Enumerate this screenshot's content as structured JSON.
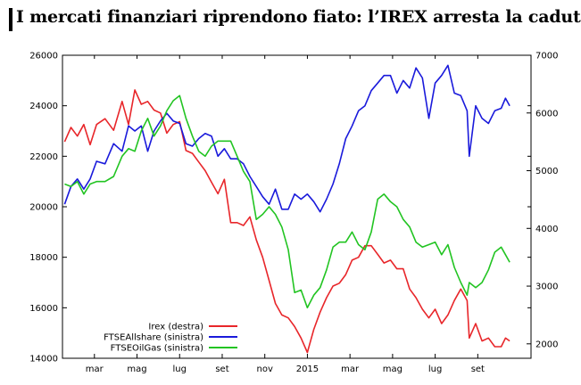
{
  "title": "I mercati finanziari riprendono fiato: l’IREX arresta la caduta",
  "chart_data": {
    "type": "line",
    "left_axis": {
      "min": 14000,
      "max": 26000,
      "ticks": [
        14000,
        16000,
        18000,
        20000,
        22000,
        24000,
        26000
      ]
    },
    "right_axis": {
      "min": 1750,
      "max": 7000,
      "ticks": [
        2000,
        3000,
        4000,
        5000,
        6000,
        7000
      ]
    },
    "x_range": [
      0,
      22
    ],
    "x_ticks": [
      {
        "label": "mar",
        "x": 1.5
      },
      {
        "label": "mag",
        "x": 3.5
      },
      {
        "label": "lug",
        "x": 5.5
      },
      {
        "label": "set",
        "x": 7.5
      },
      {
        "label": "nov",
        "x": 9.5
      },
      {
        "label": "2015",
        "x": 11.5
      },
      {
        "label": "mar",
        "x": 13.5
      },
      {
        "label": "mag",
        "x": 15.5
      },
      {
        "label": "lug",
        "x": 17.5
      },
      {
        "label": "set",
        "x": 19.5
      }
    ],
    "legend_position": "bottom-left",
    "grid": false,
    "series": [
      {
        "name": "Irex (destra)",
        "axis": "right",
        "color": "#e8262a",
        "points": [
          [
            0.1,
            5500
          ],
          [
            0.4,
            5750
          ],
          [
            0.7,
            5600
          ],
          [
            1.0,
            5800
          ],
          [
            1.3,
            5450
          ],
          [
            1.6,
            5800
          ],
          [
            2.0,
            5900
          ],
          [
            2.4,
            5700
          ],
          [
            2.8,
            6200
          ],
          [
            3.1,
            5800
          ],
          [
            3.4,
            6400
          ],
          [
            3.7,
            6150
          ],
          [
            4.0,
            6200
          ],
          [
            4.3,
            6050
          ],
          [
            4.6,
            6000
          ],
          [
            4.9,
            5650
          ],
          [
            5.2,
            5800
          ],
          [
            5.5,
            5850
          ],
          [
            5.8,
            5350
          ],
          [
            6.1,
            5300
          ],
          [
            6.4,
            5150
          ],
          [
            6.7,
            5000
          ],
          [
            7.0,
            4800
          ],
          [
            7.3,
            4600
          ],
          [
            7.6,
            4850
          ],
          [
            7.9,
            4100
          ],
          [
            8.2,
            4100
          ],
          [
            8.5,
            4050
          ],
          [
            8.8,
            4200
          ],
          [
            9.1,
            3800
          ],
          [
            9.4,
            3500
          ],
          [
            9.7,
            3100
          ],
          [
            10.0,
            2700
          ],
          [
            10.3,
            2500
          ],
          [
            10.6,
            2450
          ],
          [
            10.9,
            2300
          ],
          [
            11.2,
            2100
          ],
          [
            11.5,
            1850
          ],
          [
            11.8,
            2250
          ],
          [
            12.1,
            2550
          ],
          [
            12.4,
            2800
          ],
          [
            12.7,
            3000
          ],
          [
            13.0,
            3050
          ],
          [
            13.3,
            3200
          ],
          [
            13.6,
            3450
          ],
          [
            13.9,
            3500
          ],
          [
            14.2,
            3700
          ],
          [
            14.5,
            3700
          ],
          [
            14.8,
            3550
          ],
          [
            15.1,
            3400
          ],
          [
            15.4,
            3450
          ],
          [
            15.7,
            3300
          ],
          [
            16.0,
            3300
          ],
          [
            16.3,
            2950
          ],
          [
            16.6,
            2800
          ],
          [
            16.9,
            2600
          ],
          [
            17.2,
            2450
          ],
          [
            17.5,
            2600
          ],
          [
            17.8,
            2350
          ],
          [
            18.1,
            2500
          ],
          [
            18.4,
            2750
          ],
          [
            18.7,
            2950
          ],
          [
            19.0,
            2750
          ],
          [
            19.1,
            2100
          ],
          [
            19.4,
            2350
          ],
          [
            19.7,
            2050
          ],
          [
            20.0,
            2100
          ],
          [
            20.3,
            1950
          ],
          [
            20.6,
            1950
          ],
          [
            20.8,
            2100
          ],
          [
            21.0,
            2050
          ]
        ]
      },
      {
        "name": "FTSEAllshare (sinistra)",
        "axis": "left",
        "color": "#1a1adb",
        "points": [
          [
            0.1,
            20100
          ],
          [
            0.4,
            20800
          ],
          [
            0.7,
            21100
          ],
          [
            1.0,
            20700
          ],
          [
            1.3,
            21100
          ],
          [
            1.6,
            21800
          ],
          [
            2.0,
            21700
          ],
          [
            2.4,
            22500
          ],
          [
            2.8,
            22200
          ],
          [
            3.1,
            23200
          ],
          [
            3.4,
            23000
          ],
          [
            3.7,
            23200
          ],
          [
            4.0,
            22200
          ],
          [
            4.3,
            23000
          ],
          [
            4.6,
            23400
          ],
          [
            4.9,
            23700
          ],
          [
            5.2,
            23400
          ],
          [
            5.5,
            23300
          ],
          [
            5.8,
            22500
          ],
          [
            6.1,
            22400
          ],
          [
            6.4,
            22700
          ],
          [
            6.7,
            22900
          ],
          [
            7.0,
            22800
          ],
          [
            7.3,
            22000
          ],
          [
            7.6,
            22300
          ],
          [
            7.9,
            21900
          ],
          [
            8.2,
            21900
          ],
          [
            8.5,
            21700
          ],
          [
            8.8,
            21200
          ],
          [
            9.1,
            20800
          ],
          [
            9.4,
            20400
          ],
          [
            9.7,
            20100
          ],
          [
            10.0,
            20700
          ],
          [
            10.3,
            19900
          ],
          [
            10.6,
            19900
          ],
          [
            10.9,
            20500
          ],
          [
            11.2,
            20300
          ],
          [
            11.5,
            20500
          ],
          [
            11.8,
            20200
          ],
          [
            12.1,
            19800
          ],
          [
            12.4,
            20300
          ],
          [
            12.7,
            20900
          ],
          [
            13.0,
            21700
          ],
          [
            13.3,
            22700
          ],
          [
            13.6,
            23200
          ],
          [
            13.9,
            23800
          ],
          [
            14.2,
            24000
          ],
          [
            14.5,
            24600
          ],
          [
            14.8,
            24900
          ],
          [
            15.1,
            25200
          ],
          [
            15.4,
            25200
          ],
          [
            15.7,
            24500
          ],
          [
            16.0,
            25000
          ],
          [
            16.3,
            24700
          ],
          [
            16.6,
            25500
          ],
          [
            16.9,
            25100
          ],
          [
            17.2,
            23500
          ],
          [
            17.5,
            24900
          ],
          [
            17.8,
            25200
          ],
          [
            18.1,
            25600
          ],
          [
            18.4,
            24500
          ],
          [
            18.7,
            24400
          ],
          [
            19.0,
            23800
          ],
          [
            19.1,
            22000
          ],
          [
            19.4,
            24000
          ],
          [
            19.7,
            23500
          ],
          [
            20.0,
            23300
          ],
          [
            20.3,
            23800
          ],
          [
            20.6,
            23900
          ],
          [
            20.8,
            24300
          ],
          [
            21.0,
            24000
          ]
        ]
      },
      {
        "name": "FTSEOilGas (sinistra)",
        "axis": "left",
        "color": "#22c422",
        "points": [
          [
            0.1,
            20900
          ],
          [
            0.4,
            20800
          ],
          [
            0.7,
            21000
          ],
          [
            1.0,
            20500
          ],
          [
            1.3,
            20900
          ],
          [
            1.6,
            21000
          ],
          [
            2.0,
            21000
          ],
          [
            2.4,
            21200
          ],
          [
            2.8,
            22000
          ],
          [
            3.1,
            22300
          ],
          [
            3.4,
            22200
          ],
          [
            3.7,
            23000
          ],
          [
            4.0,
            23500
          ],
          [
            4.3,
            22800
          ],
          [
            4.6,
            23200
          ],
          [
            4.9,
            23800
          ],
          [
            5.2,
            24200
          ],
          [
            5.5,
            24400
          ],
          [
            5.8,
            23500
          ],
          [
            6.1,
            22800
          ],
          [
            6.4,
            22200
          ],
          [
            6.7,
            22000
          ],
          [
            7.0,
            22400
          ],
          [
            7.3,
            22600
          ],
          [
            7.9,
            22600
          ],
          [
            8.2,
            22000
          ],
          [
            8.5,
            21400
          ],
          [
            8.8,
            21000
          ],
          [
            9.1,
            19500
          ],
          [
            9.4,
            19700
          ],
          [
            9.7,
            20000
          ],
          [
            10.0,
            19700
          ],
          [
            10.3,
            19200
          ],
          [
            10.6,
            18300
          ],
          [
            10.9,
            16600
          ],
          [
            11.2,
            16700
          ],
          [
            11.5,
            16000
          ],
          [
            11.8,
            16500
          ],
          [
            12.1,
            16800
          ],
          [
            12.4,
            17500
          ],
          [
            12.7,
            18400
          ],
          [
            13.0,
            18600
          ],
          [
            13.3,
            18600
          ],
          [
            13.6,
            19000
          ],
          [
            13.9,
            18500
          ],
          [
            14.2,
            18300
          ],
          [
            14.5,
            19000
          ],
          [
            14.8,
            20300
          ],
          [
            15.1,
            20500
          ],
          [
            15.4,
            20200
          ],
          [
            15.7,
            20000
          ],
          [
            16.0,
            19500
          ],
          [
            16.3,
            19200
          ],
          [
            16.6,
            18600
          ],
          [
            16.9,
            18400
          ],
          [
            17.2,
            18500
          ],
          [
            17.5,
            18600
          ],
          [
            17.8,
            18100
          ],
          [
            18.1,
            18500
          ],
          [
            18.4,
            17600
          ],
          [
            18.7,
            17000
          ],
          [
            19.0,
            16500
          ],
          [
            19.1,
            17000
          ],
          [
            19.4,
            16800
          ],
          [
            19.7,
            17000
          ],
          [
            20.0,
            17500
          ],
          [
            20.3,
            18200
          ],
          [
            20.6,
            18400
          ],
          [
            20.8,
            18100
          ],
          [
            21.0,
            17800
          ]
        ]
      }
    ]
  }
}
